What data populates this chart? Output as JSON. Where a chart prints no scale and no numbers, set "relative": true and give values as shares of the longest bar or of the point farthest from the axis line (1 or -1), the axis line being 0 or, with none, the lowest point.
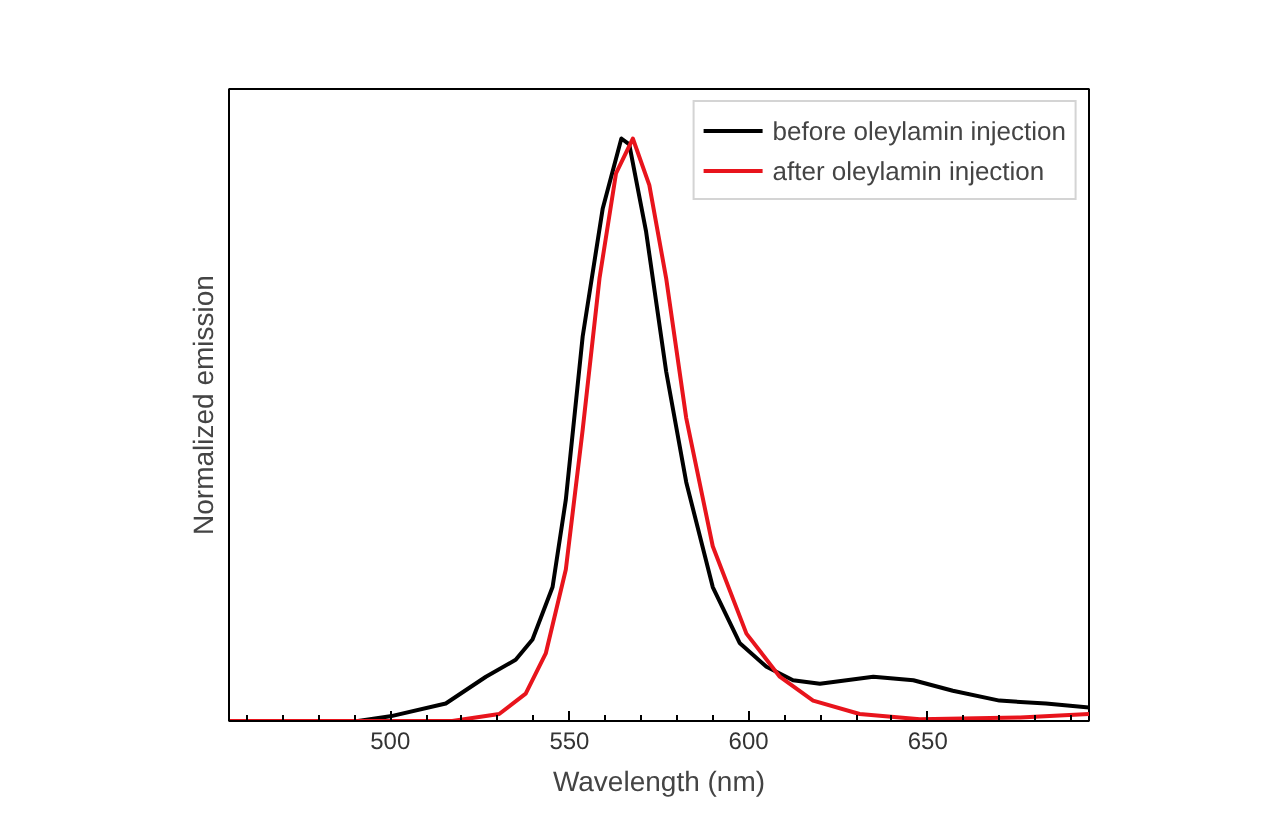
{
  "chart_data": {
    "type": "line",
    "relative": true,
    "xlabel": "Wavelength (nm)",
    "ylabel": "Normalized emission",
    "xlim": [
      455,
      695
    ],
    "xticks": [
      {
        "value": 460,
        "label": null
      },
      {
        "value": 470,
        "label": null
      },
      {
        "value": 480,
        "label": null
      },
      {
        "value": 490,
        "label": null
      },
      500,
      {
        "value": 510,
        "label": null
      },
      {
        "value": 520,
        "label": null
      },
      {
        "value": 530,
        "label": null
      },
      {
        "value": 540,
        "label": null
      },
      550,
      {
        "value": 560,
        "label": null
      },
      {
        "value": 570,
        "label": null
      },
      {
        "value": 580,
        "label": null
      },
      {
        "value": 590,
        "label": null
      },
      600,
      {
        "value": 610,
        "label": null
      },
      {
        "value": 620,
        "label": null
      },
      {
        "value": 630,
        "label": null
      },
      {
        "value": 640,
        "label": null
      },
      650,
      {
        "value": 660,
        "label": null
      },
      {
        "value": 670,
        "label": null
      },
      {
        "value": 680,
        "label": null
      },
      {
        "value": 690,
        "label": null
      }
    ],
    "grid": false,
    "legend": "top right",
    "line_style": "solid",
    "marker": "none",
    "series": [
      {
        "name": "before oleylamin injection",
        "color": "#000000",
        "x": [
          455,
          491,
          500,
          515.5,
          526.7,
          535,
          539.7,
          545.3,
          549,
          553.7,
          559.3,
          564.5,
          566.7,
          571.4,
          577,
          582.6,
          590,
          597.5,
          605,
          612.4,
          619.9,
          634.8,
          646,
          657,
          670,
          683,
          695
        ],
        "values": [
          0,
          0,
          0.008,
          0.03,
          0.076,
          0.105,
          0.14,
          0.23,
          0.38,
          0.66,
          0.88,
          1.0,
          0.99,
          0.84,
          0.6,
          0.41,
          0.23,
          0.134,
          0.093,
          0.07,
          0.064,
          0.076,
          0.07,
          0.052,
          0.035,
          0.03,
          0.023
        ]
      },
      {
        "name": "after oleylamin injection",
        "color": "#e8141c",
        "x": [
          455,
          517.3,
          530.4,
          537.8,
          543.4,
          549,
          553.7,
          558.4,
          563,
          567.7,
          572.3,
          577,
          582.6,
          590,
          599.4,
          608.7,
          618,
          631,
          647.8,
          675.8,
          695
        ],
        "values": [
          0,
          0,
          0.012,
          0.047,
          0.116,
          0.26,
          0.5,
          0.76,
          0.94,
          1.0,
          0.92,
          0.76,
          0.52,
          0.3,
          0.15,
          0.076,
          0.035,
          0.012,
          0.003,
          0.006,
          0.012
        ]
      }
    ]
  }
}
